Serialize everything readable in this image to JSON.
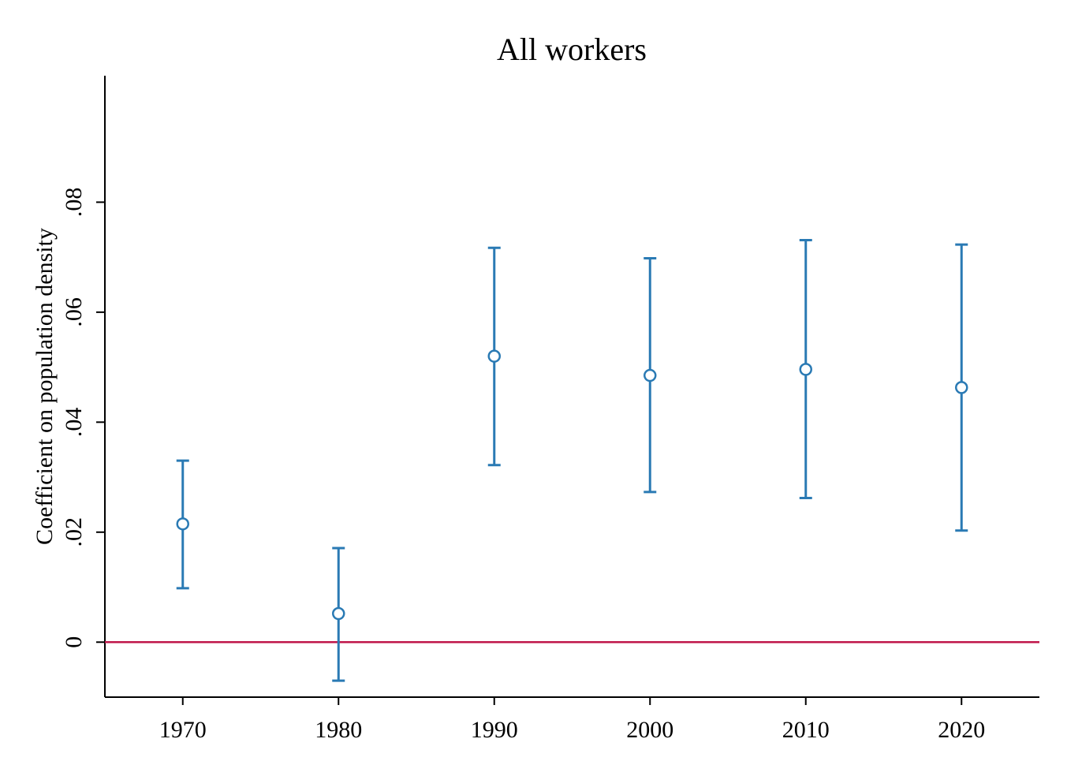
{
  "chart_data": {
    "type": "scatter",
    "title": "All workers",
    "xlabel": "",
    "ylabel": "Coefficient on population density",
    "xlim": [
      1965,
      2025
    ],
    "ylim": [
      -0.01,
      0.103
    ],
    "x_ticks": [
      1970,
      1980,
      1990,
      2000,
      2010,
      2020
    ],
    "x_tick_labels": [
      "1970",
      "1980",
      "1990",
      "2000",
      "2010",
      "2020"
    ],
    "y_ticks": [
      0,
      0.02,
      0.04,
      0.06,
      0.08
    ],
    "y_tick_labels": [
      "0",
      ".02",
      ".04",
      ".06",
      ".08"
    ],
    "grid": false,
    "reference_line": {
      "y": 0,
      "color": "#c0164a"
    },
    "series": [
      {
        "marker": "hollow-circle",
        "color": "#2a7ab4",
        "error_bars": true,
        "points": [
          {
            "x": 1970,
            "y": 0.0215,
            "lo": 0.0098,
            "hi": 0.033
          },
          {
            "x": 1980,
            "y": 0.0052,
            "lo": -0.007,
            "hi": 0.0171
          },
          {
            "x": 1990,
            "y": 0.052,
            "lo": 0.0322,
            "hi": 0.0717
          },
          {
            "x": 2000,
            "y": 0.0485,
            "lo": 0.0273,
            "hi": 0.0698
          },
          {
            "x": 2010,
            "y": 0.0496,
            "lo": 0.0262,
            "hi": 0.0731
          },
          {
            "x": 2020,
            "y": 0.0463,
            "lo": 0.0203,
            "hi": 0.0723
          }
        ]
      }
    ]
  }
}
